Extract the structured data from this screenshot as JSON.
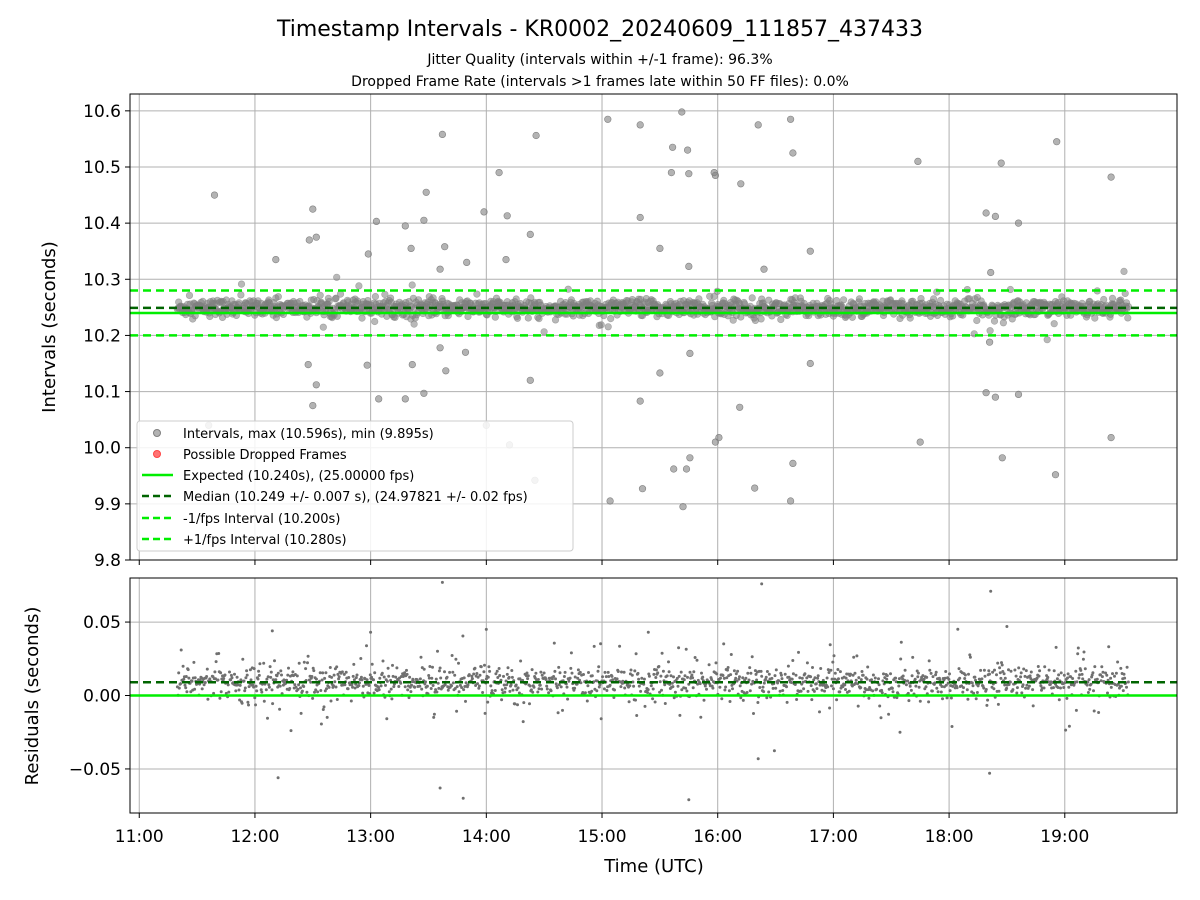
{
  "chart_data": [
    {
      "type": "scatter",
      "title": "Timestamp Intervals - KR0002_20240609_111857_437433",
      "subtitles": [
        "Jitter Quality (intervals within +/-1 frame): 96.3%",
        "Dropped Frame Rate (intervals >1 frames late within 50 FF files): 0.0%"
      ],
      "ylabel": "Intervals (seconds)",
      "ylim": [
        9.8,
        10.63
      ],
      "xlim": [
        10.92,
        19.97
      ],
      "yticks": [
        9.8,
        9.9,
        10.0,
        10.1,
        10.2,
        10.3,
        10.4,
        10.5,
        10.6
      ],
      "ytick_labels": [
        "9.8",
        "9.9",
        "10.0",
        "10.1",
        "10.2",
        "10.3",
        "10.4",
        "10.5",
        "10.6"
      ],
      "grid": true,
      "legend_position": "lower-left",
      "legend": [
        {
          "label": "Intervals, max (10.596s), min (9.895s)",
          "style": "marker",
          "color": "#808080"
        },
        {
          "label": "Possible Dropped Frames",
          "style": "marker",
          "color": "#ff0000"
        },
        {
          "label": "Expected (10.240s), (25.00000 fps)",
          "style": "solid",
          "color": "#00ee00"
        },
        {
          "label": "Median (10.249 +/- 0.007 s), (24.97821 +/- 0.02 fps)",
          "style": "dashed",
          "color": "#006400"
        },
        {
          "label": "-1/fps Interval (10.200s)",
          "style": "dashed",
          "color": "#00ee00"
        },
        {
          "label": "+1/fps Interval (10.280s)",
          "style": "dashed",
          "color": "#00ee00"
        }
      ],
      "reference_lines": [
        {
          "name": "expected",
          "y": 10.24,
          "style": "solid",
          "color": "#00ee00"
        },
        {
          "name": "median",
          "y": 10.249,
          "style": "dashed",
          "color": "#006400"
        },
        {
          "name": "minus-fps",
          "y": 10.2,
          "style": "dashed",
          "color": "#00ee00"
        },
        {
          "name": "plus-fps",
          "y": 10.28,
          "style": "dashed",
          "color": "#00ee00"
        }
      ],
      "series": {
        "x_start": 11.33,
        "x_end": 19.55,
        "median": 10.249,
        "outliers": [
          [
            11.65,
            10.45
          ],
          [
            12.18,
            10.335
          ],
          [
            12.47,
            10.37
          ],
          [
            12.5,
            10.425
          ],
          [
            12.53,
            10.375
          ],
          [
            12.46,
            10.148
          ],
          [
            12.53,
            10.112
          ],
          [
            12.5,
            10.075
          ],
          [
            11.6,
            10.04
          ],
          [
            12.98,
            10.345
          ],
          [
            12.97,
            10.147
          ],
          [
            13.05,
            10.403
          ],
          [
            13.07,
            10.087
          ],
          [
            13.3,
            10.395
          ],
          [
            13.35,
            10.355
          ],
          [
            13.36,
            10.148
          ],
          [
            13.3,
            10.087
          ],
          [
            13.46,
            10.405
          ],
          [
            13.48,
            10.455
          ],
          [
            13.46,
            10.097
          ],
          [
            13.62,
            10.558
          ],
          [
            13.64,
            10.358
          ],
          [
            13.6,
            10.318
          ],
          [
            13.6,
            10.178
          ],
          [
            13.65,
            10.137
          ],
          [
            13.83,
            10.33
          ],
          [
            13.82,
            10.17
          ],
          [
            13.98,
            10.42
          ],
          [
            14.11,
            10.49
          ],
          [
            14.18,
            10.413
          ],
          [
            14.17,
            10.335
          ],
          [
            14.2,
            10.005
          ],
          [
            14.0,
            10.04
          ],
          [
            14.38,
            10.38
          ],
          [
            14.38,
            10.12
          ],
          [
            14.43,
            10.556
          ],
          [
            14.42,
            9.942
          ],
          [
            15.05,
            10.585
          ],
          [
            15.07,
            9.905
          ],
          [
            15.33,
            10.575
          ],
          [
            15.33,
            10.41
          ],
          [
            15.35,
            9.927
          ],
          [
            15.33,
            10.083
          ],
          [
            15.5,
            10.355
          ],
          [
            15.5,
            10.133
          ],
          [
            15.61,
            10.535
          ],
          [
            15.6,
            10.49
          ],
          [
            15.62,
            9.962
          ],
          [
            15.69,
            10.598
          ],
          [
            15.7,
            9.895
          ],
          [
            15.74,
            10.53
          ],
          [
            15.75,
            10.488
          ],
          [
            15.75,
            10.323
          ],
          [
            15.76,
            10.168
          ],
          [
            15.76,
            9.982
          ],
          [
            15.73,
            9.962
          ],
          [
            15.97,
            10.49
          ],
          [
            15.98,
            10.485
          ],
          [
            15.98,
            10.01
          ],
          [
            16.01,
            10.018
          ],
          [
            16.2,
            10.47
          ],
          [
            16.19,
            10.072
          ],
          [
            16.35,
            10.575
          ],
          [
            16.32,
            9.928
          ],
          [
            16.4,
            10.318
          ],
          [
            16.63,
            10.585
          ],
          [
            16.65,
            10.525
          ],
          [
            16.65,
            9.972
          ],
          [
            16.63,
            9.905
          ],
          [
            16.8,
            10.35
          ],
          [
            16.8,
            10.15
          ],
          [
            17.73,
            10.51
          ],
          [
            17.75,
            10.01
          ],
          [
            18.32,
            10.418
          ],
          [
            18.4,
            10.412
          ],
          [
            18.36,
            10.312
          ],
          [
            18.35,
            10.188
          ],
          [
            18.32,
            10.098
          ],
          [
            18.4,
            10.09
          ],
          [
            18.45,
            10.507
          ],
          [
            18.46,
            9.982
          ],
          [
            18.6,
            10.4
          ],
          [
            18.6,
            10.095
          ],
          [
            18.93,
            10.545
          ],
          [
            18.92,
            9.952
          ],
          [
            19.4,
            10.482
          ],
          [
            19.4,
            10.018
          ]
        ]
      }
    },
    {
      "type": "scatter",
      "ylabel": "Residuals (seconds)",
      "xlabel": "Time (UTC)",
      "ylim": [
        -0.08,
        0.08
      ],
      "xlim": [
        10.92,
        19.97
      ],
      "yticks": [
        -0.05,
        0.0,
        0.05
      ],
      "ytick_labels": [
        "−0.05",
        "0.00",
        "0.05"
      ],
      "xticks": [
        11,
        12,
        13,
        14,
        15,
        16,
        17,
        18,
        19
      ],
      "xtick_labels": [
        "11:00",
        "12:00",
        "13:00",
        "14:00",
        "15:00",
        "16:00",
        "17:00",
        "18:00",
        "19:00"
      ],
      "grid": true,
      "reference_lines": [
        {
          "name": "zero",
          "y": 0.0,
          "style": "solid",
          "color": "#00ee00"
        },
        {
          "name": "median-offset",
          "y": 0.009,
          "style": "dashed",
          "color": "#006400"
        }
      ],
      "series": {
        "x_start": 11.33,
        "x_end": 19.55,
        "center": 0.009,
        "outliers": [
          [
            13.62,
            0.077
          ],
          [
            16.38,
            0.076
          ],
          [
            18.36,
            0.071
          ],
          [
            13.6,
            -0.063
          ],
          [
            13.8,
            -0.07
          ],
          [
            15.75,
            -0.071
          ],
          [
            12.2,
            -0.056
          ],
          [
            18.35,
            -0.053
          ],
          [
            16.35,
            -0.043
          ],
          [
            12.15,
            0.044
          ],
          [
            14.0,
            0.045
          ],
          [
            18.5,
            0.047
          ],
          [
            13.0,
            0.043
          ],
          [
            15.4,
            0.043
          ]
        ]
      }
    }
  ]
}
